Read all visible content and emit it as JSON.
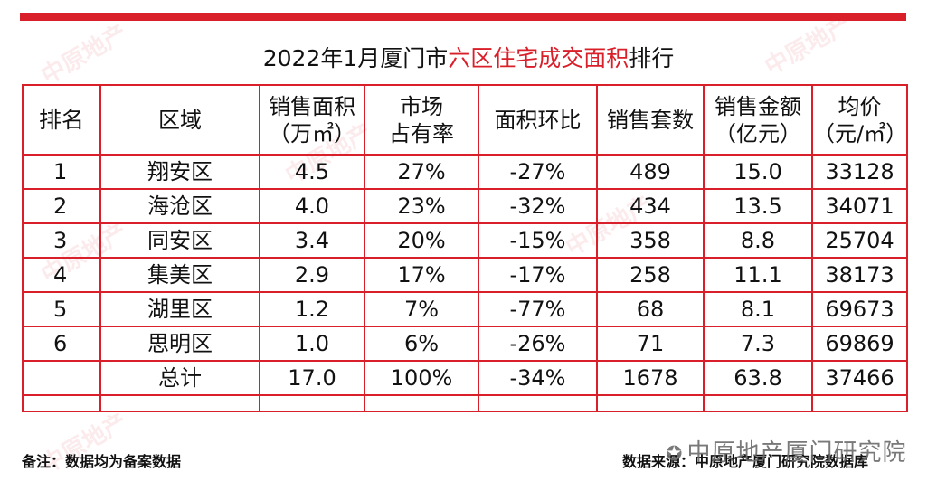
{
  "title": {
    "prefix": "2022年1月厦门市",
    "highlight": "六区住宅成交面积",
    "suffix": "排行"
  },
  "headers": {
    "rank": "排名",
    "region": "区域",
    "area": [
      "销售面积",
      "（万㎡）"
    ],
    "share": [
      "市场",
      "占有率"
    ],
    "change": "面积环比",
    "units": "销售套数",
    "amount": [
      "销售金额",
      "（亿元）"
    ],
    "price": [
      "均价",
      "（元/㎡）"
    ]
  },
  "rows": [
    {
      "rank": "1",
      "region": "翔安区",
      "area": "4.5",
      "share": "27%",
      "change": "-27%",
      "units": "489",
      "amount": "15.0",
      "price": "33128"
    },
    {
      "rank": "2",
      "region": "海沧区",
      "area": "4.0",
      "share": "23%",
      "change": "-32%",
      "units": "434",
      "amount": "13.5",
      "price": "34071"
    },
    {
      "rank": "3",
      "region": "同安区",
      "area": "3.4",
      "share": "20%",
      "change": "-15%",
      "units": "358",
      "amount": "8.8",
      "price": "25704"
    },
    {
      "rank": "4",
      "region": "集美区",
      "area": "2.9",
      "share": "17%",
      "change": "-17%",
      "units": "258",
      "amount": "11.1",
      "price": "38173"
    },
    {
      "rank": "5",
      "region": "湖里区",
      "area": "1.2",
      "share": "7%",
      "change": "-77%",
      "units": "68",
      "amount": "8.1",
      "price": "69673"
    },
    {
      "rank": "6",
      "region": "思明区",
      "area": "1.0",
      "share": "6%",
      "change": "-26%",
      "units": "71",
      "amount": "7.3",
      "price": "69869"
    }
  ],
  "total": {
    "label": "总计",
    "area": "17.0",
    "share": "100%",
    "change": "-34%",
    "units": "1678",
    "amount": "63.8",
    "price": "37466"
  },
  "footer": {
    "note": "备注：数据均为备案数据",
    "source": "数据来源：中原地产厦门研究院数据库",
    "wechat_watermark": "中原地产厦门研究院",
    "bg_watermark": "中原地产"
  },
  "colors": {
    "accent": "#d9202a"
  }
}
